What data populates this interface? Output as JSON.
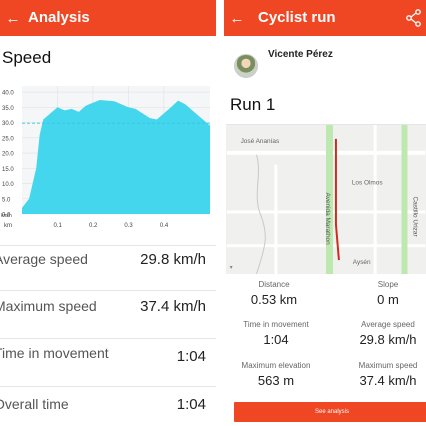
{
  "left": {
    "header": {
      "back_icon": "arrow-left-icon",
      "title": "Analysis"
    },
    "section_title": "Speed",
    "chart_data": {
      "type": "area",
      "title": "",
      "xlabel": "km",
      "ylabel": "km/h",
      "y_ticks": [
        "40.0",
        "35.0",
        "30.0",
        "25.0",
        "20.0",
        "15.0",
        "10.0",
        "5.0",
        "0.0"
      ],
      "x_ticks": [
        "km",
        "0.1",
        "0.2",
        "0.3",
        "0.4"
      ],
      "ylim": [
        0,
        42
      ],
      "xlim": [
        0,
        0.53
      ],
      "series": [
        {
          "x": [
            0.0,
            0.02,
            0.04,
            0.05,
            0.06,
            0.08,
            0.1,
            0.12,
            0.14,
            0.16,
            0.18,
            0.2,
            0.22,
            0.24,
            0.26,
            0.28,
            0.3,
            0.32,
            0.34,
            0.36,
            0.38,
            0.4,
            0.42,
            0.44,
            0.46,
            0.48,
            0.5,
            0.52,
            0.53
          ],
          "y": [
            2,
            5,
            15,
            26,
            31,
            33,
            35,
            34,
            34.5,
            33.5,
            35.5,
            36.5,
            37.4,
            37.2,
            37,
            36,
            35,
            34.5,
            33,
            31.5,
            31,
            33,
            35,
            37.2,
            36,
            34,
            32,
            30,
            29
          ]
        }
      ],
      "average_line": 29.8,
      "grid": true,
      "colors": {
        "area": "#44d6ec",
        "average_line": "#2ec9e3",
        "grid": "#e2e2e2",
        "background": "#f4f6f7"
      }
    },
    "stats": [
      {
        "label": "Average speed",
        "value": "29.8 km/h"
      },
      {
        "label": "Maximum speed",
        "value": "37.4 km/h"
      },
      {
        "label": "Time in movement",
        "value": "1:04"
      },
      {
        "label": "Overall time",
        "value": "1:04"
      }
    ]
  },
  "right": {
    "header": {
      "back_icon": "arrow-left-icon",
      "title": "Cyclist run",
      "share_icon": "share-icon"
    },
    "user": {
      "name": "Vicente Pérez"
    },
    "run_title": "Run 1",
    "map": {
      "labels": {
        "jose_anania": "José Ananías",
        "los_olmos": "Los Olmos",
        "avenida_marathon": "Avenida Marathon",
        "castillo_urizar": "Castillo Urizar",
        "aysen": "Aysén"
      },
      "colors": {
        "route": "#cc2d1d",
        "green_strip": "#bde8b0",
        "road": "#ffffff",
        "block": "#ecebe8"
      }
    },
    "stats": [
      {
        "label": "Distance",
        "value": "0.53 km"
      },
      {
        "label": "Slope",
        "value": "0 m"
      },
      {
        "label": "Time in movement",
        "value": "1:04"
      },
      {
        "label": "Average speed",
        "value": "29.8 km/h"
      },
      {
        "label": "Maximum elevation",
        "value": "563 m"
      },
      {
        "label": "Maximum speed",
        "value": "37.4 km/h"
      }
    ],
    "button": {
      "label": "See analysis"
    }
  },
  "theme": {
    "accent": "#ef4723"
  }
}
